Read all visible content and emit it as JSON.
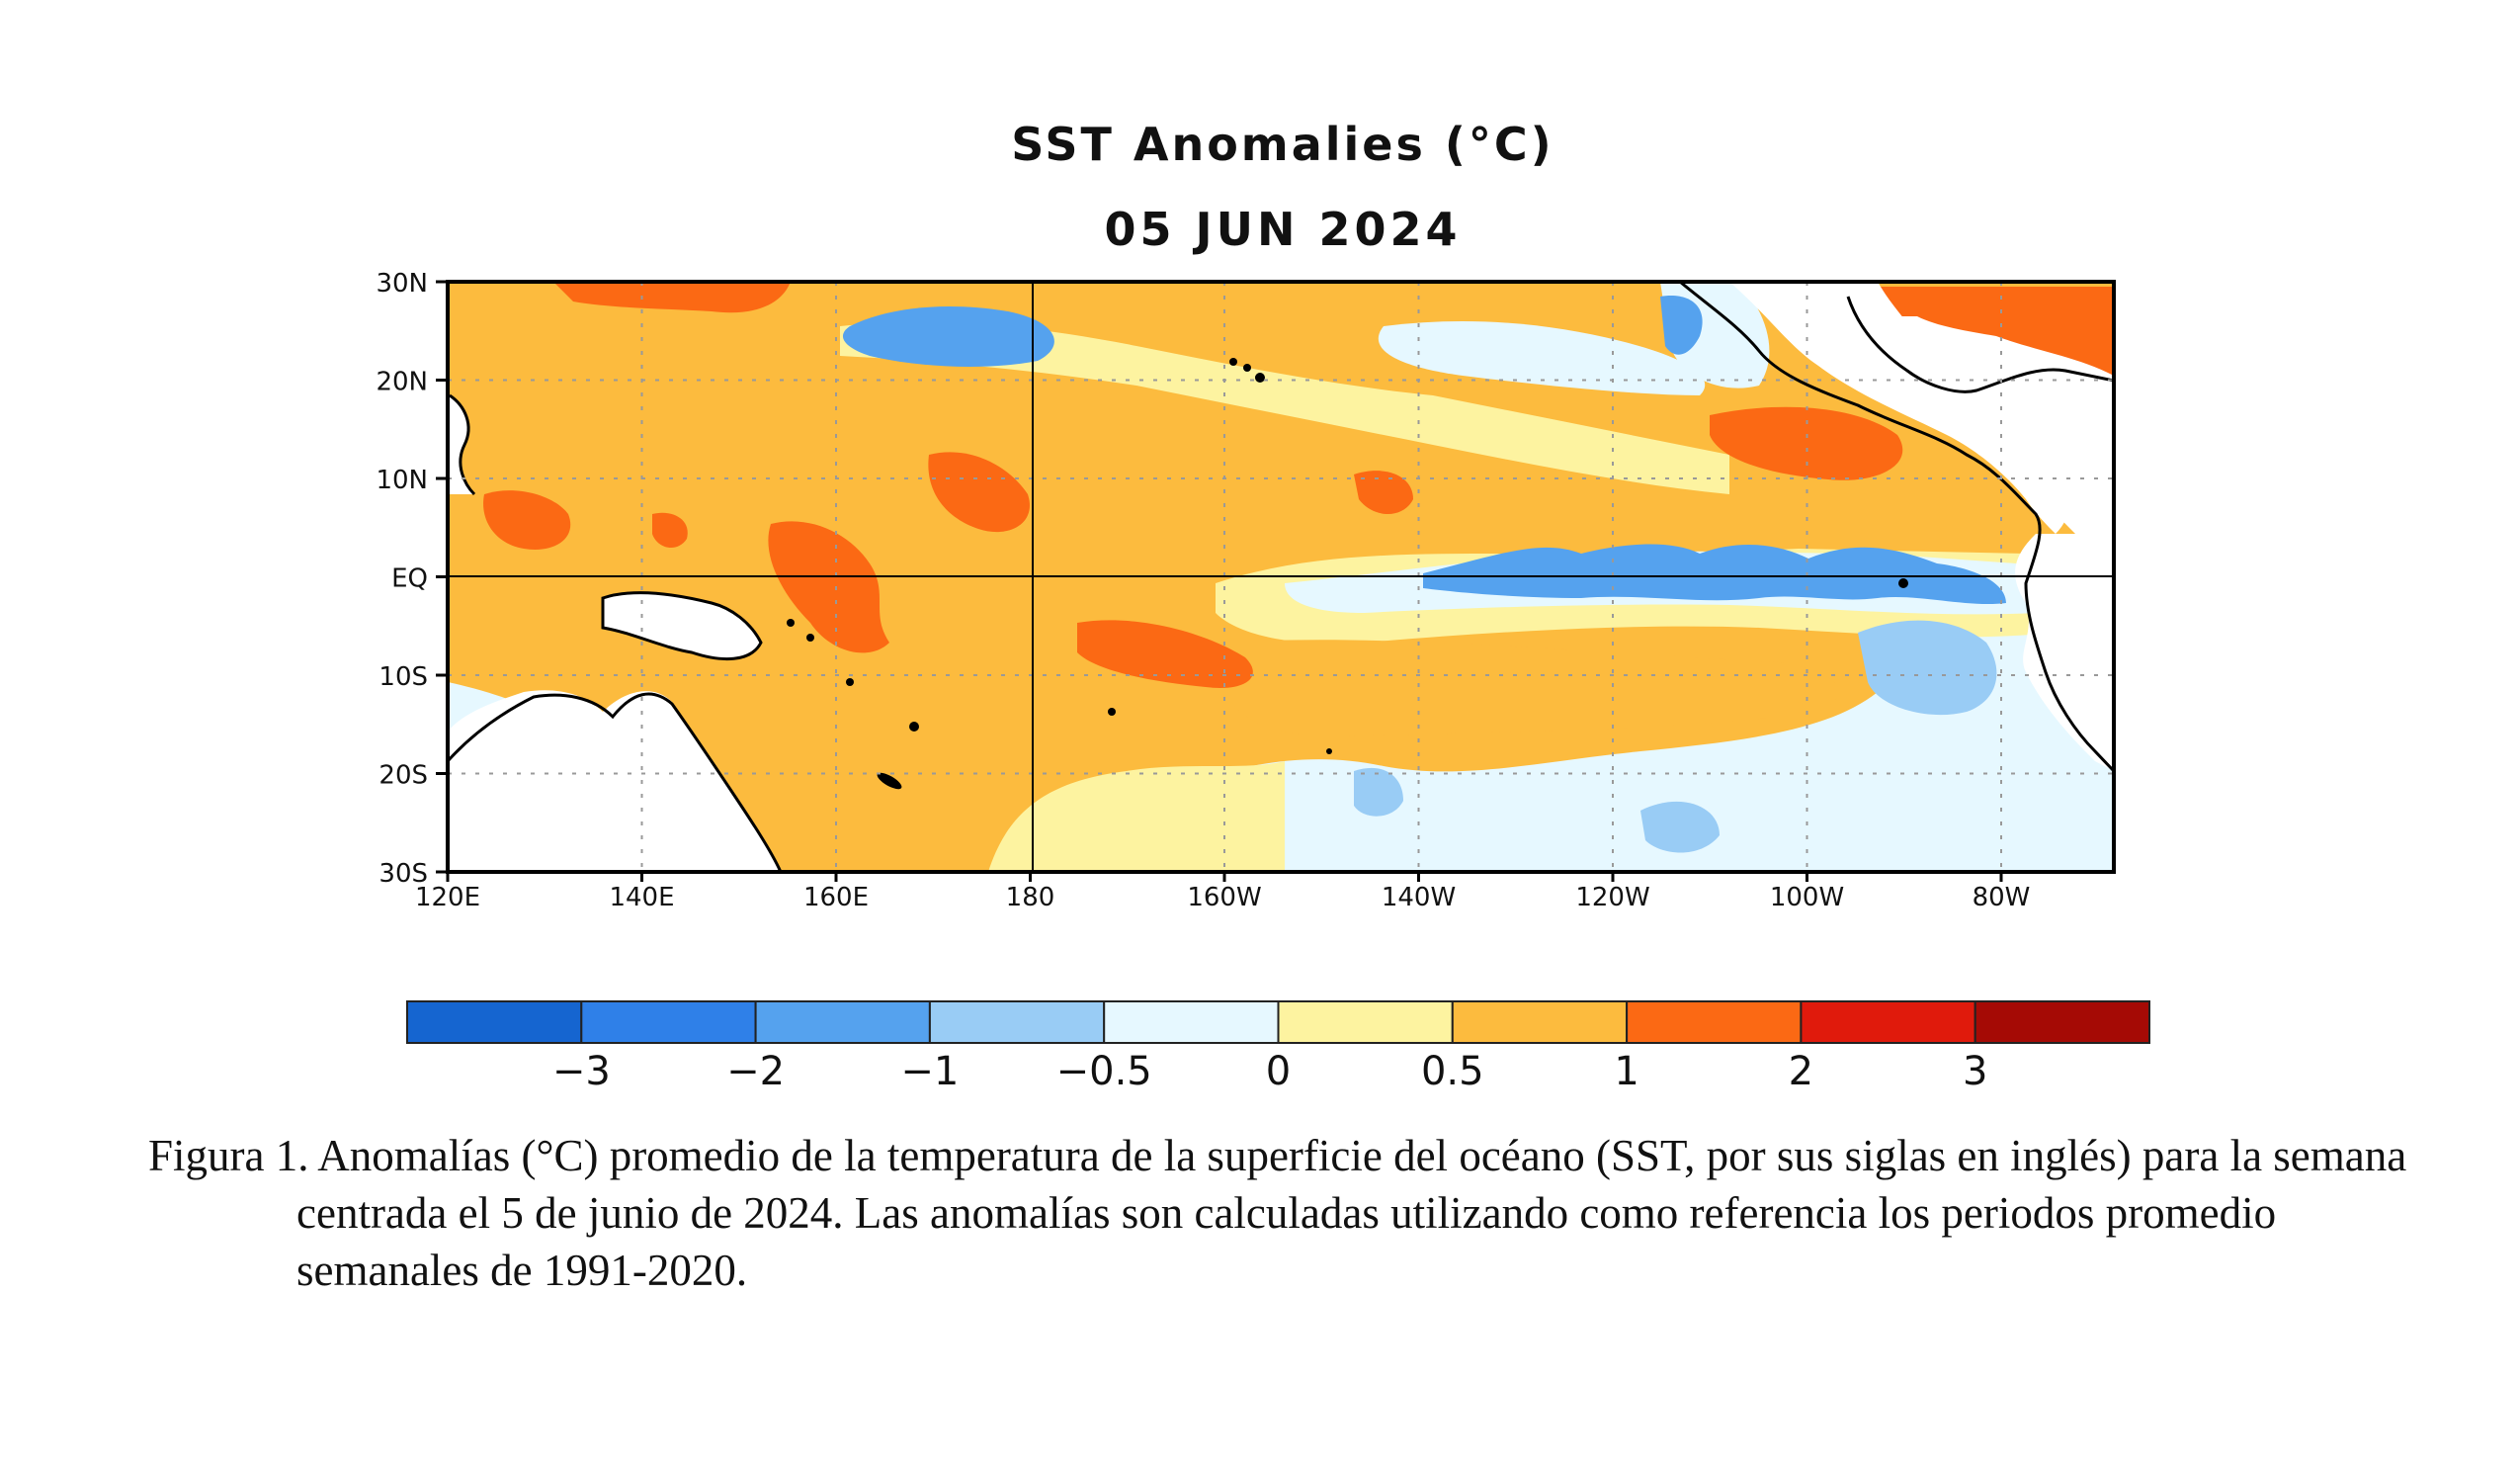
{
  "map": {
    "title": "SST Anomalies (°C)",
    "date": "05 JUN 2024",
    "lat_labels": [
      "30N",
      "20N",
      "10N",
      "EQ",
      "10S",
      "20S",
      "30S"
    ],
    "lon_labels": [
      "120E",
      "140E",
      "160E",
      "180",
      "160W",
      "140W",
      "120W",
      "100W",
      "80W"
    ],
    "colors": {
      "c_m3": "#1565d0",
      "c_m2": "#2f80e8",
      "c_m1": "#55a2ee",
      "c_m05": "#99ccf5",
      "c_0": "#e6f8ff",
      "c_05": "#fdf3a0",
      "c_1": "#fcbb3e",
      "c_2": "#fb6914",
      "c_3": "#e01a0c",
      "c_4": "#a50a05",
      "land": "#ffffff",
      "coast": "#000000"
    }
  },
  "colorbar": {
    "labels": [
      "−3",
      "−2",
      "−1",
      "−0.5",
      "0",
      "0.5",
      "1",
      "2",
      "3"
    ],
    "colors": [
      "#1565d0",
      "#2f80e8",
      "#55a2ee",
      "#99ccf5",
      "#e6f8ff",
      "#fdf3a0",
      "#fcbb3e",
      "#fb6914",
      "#e01a0c",
      "#a50a05"
    ]
  },
  "caption": {
    "text": "Figura 1. Anomalías (°C) promedio de la temperatura de la superficie del océano (SST, por sus siglas en inglés) para la semana centrada el 5 de junio de 2024. Las anomalías son calculadas utilizando como referencia los periodos promedio semanales de 1991-2020."
  }
}
